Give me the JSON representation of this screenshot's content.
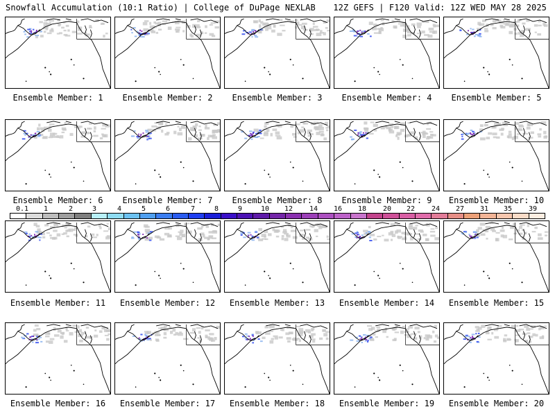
{
  "header": {
    "title_left": "Snowfall Accumulation (10:1 Ratio) | College of DuPage NEXLAB",
    "title_right": "12Z GEFS | F120 Valid: 12Z WED MAY 28 2025"
  },
  "panels": [
    {
      "label": "Ensemble Member: 1"
    },
    {
      "label": "Ensemble Member: 2"
    },
    {
      "label": "Ensemble Member: 3"
    },
    {
      "label": "Ensemble Member: 4"
    },
    {
      "label": "Ensemble Member: 5"
    },
    {
      "label": "Ensemble Member: 6"
    },
    {
      "label": "Ensemble Member: 7"
    },
    {
      "label": "Ensemble Member: 8"
    },
    {
      "label": "Ensemble Member: 9"
    },
    {
      "label": "Ensemble Member: 10"
    },
    {
      "label": "Ensemble Member: 11"
    },
    {
      "label": "Ensemble Member: 12"
    },
    {
      "label": "Ensemble Member: 13"
    },
    {
      "label": "Ensemble Member: 14"
    },
    {
      "label": "Ensemble Member: 15"
    },
    {
      "label": "Ensemble Member: 16"
    },
    {
      "label": "Ensemble Member: 17"
    },
    {
      "label": "Ensemble Member: 18"
    },
    {
      "label": "Ensemble Member: 19"
    },
    {
      "label": "Ensemble Member: 20"
    }
  ],
  "colorbar": {
    "tick_labels": [
      "0.1",
      "1",
      "2",
      "3",
      "4",
      "5",
      "6",
      "7",
      "8",
      "9",
      "10",
      "12",
      "14",
      "16",
      "18",
      "20",
      "22",
      "24",
      "27",
      "31",
      "35",
      "39"
    ],
    "colors": [
      "#ffffff",
      "#dcdcdc",
      "#bdbdbd",
      "#9e9e9e",
      "#7f7f7f",
      "#b8f0f8",
      "#8edcf2",
      "#6cc1f0",
      "#4f9ff0",
      "#3a7df0",
      "#2a5cf0",
      "#1f3ef0",
      "#1a1ed8",
      "#3a10c8",
      "#4c12b4",
      "#5e1aa8",
      "#7426a8",
      "#8a30b0",
      "#9c40b8",
      "#ac50c0",
      "#bc62c8",
      "#c874cc",
      "#c2448c",
      "#ce5098",
      "#d85ea4",
      "#e06caa",
      "#e27c98",
      "#e68e86",
      "#eca078",
      "#f2b496",
      "#f6c6ae",
      "#fadcc8",
      "#fdeee2"
    ]
  }
}
